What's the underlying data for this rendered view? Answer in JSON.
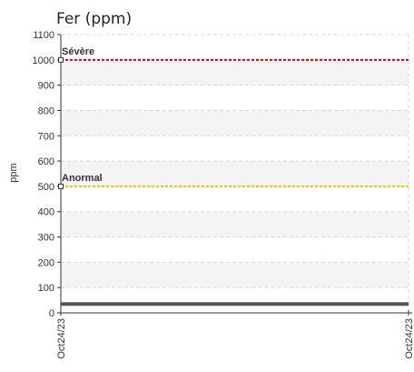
{
  "chart_data": {
    "type": "line",
    "title": "Fer (ppm)",
    "ylabel": "ppm",
    "xlabel": "",
    "ylim": [
      0,
      1100
    ],
    "yticks": [
      0,
      100,
      200,
      300,
      400,
      500,
      600,
      700,
      800,
      900,
      1000,
      1100
    ],
    "x_tick_labels": [
      "Oct24/23",
      "Oct24/23"
    ],
    "grid": true,
    "thresholds": [
      {
        "label": "Sévère",
        "value": 1000,
        "color": "#e0000a"
      },
      {
        "label": "Anormal",
        "value": 500,
        "color": "#f2c200"
      }
    ],
    "series": [
      {
        "x": [
          "Oct24/23",
          "Oct24/23"
        ],
        "values": [
          35,
          35
        ],
        "color": "#555555"
      }
    ]
  }
}
